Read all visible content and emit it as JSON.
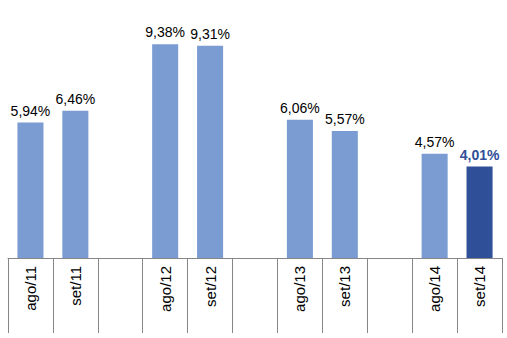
{
  "chart_data": {
    "type": "bar",
    "categories": [
      "ago/11",
      "set/11",
      null,
      "ago/12",
      "set/12",
      null,
      "ago/13",
      "set/13",
      null,
      "ago/14",
      "set/14"
    ],
    "values": [
      5.94,
      6.46,
      null,
      9.38,
      9.31,
      null,
      6.06,
      5.57,
      null,
      4.57,
      4.01
    ],
    "value_labels": [
      "5,94%",
      "6,46%",
      null,
      "9,38%",
      "9,31%",
      null,
      "6,06%",
      "5,57%",
      null,
      "4,57%",
      "4,01%"
    ],
    "colors": [
      "#7b9cd3",
      "#7b9cd3",
      null,
      "#7b9cd3",
      "#7b9cd3",
      null,
      "#7b9cd3",
      "#7b9cd3",
      null,
      "#7b9cd3",
      "#2f4f98"
    ],
    "ylim": [
      0,
      10
    ],
    "yticks": [
      0,
      10
    ],
    "grid": false,
    "data_labels": true,
    "tick_labels": "x"
  }
}
